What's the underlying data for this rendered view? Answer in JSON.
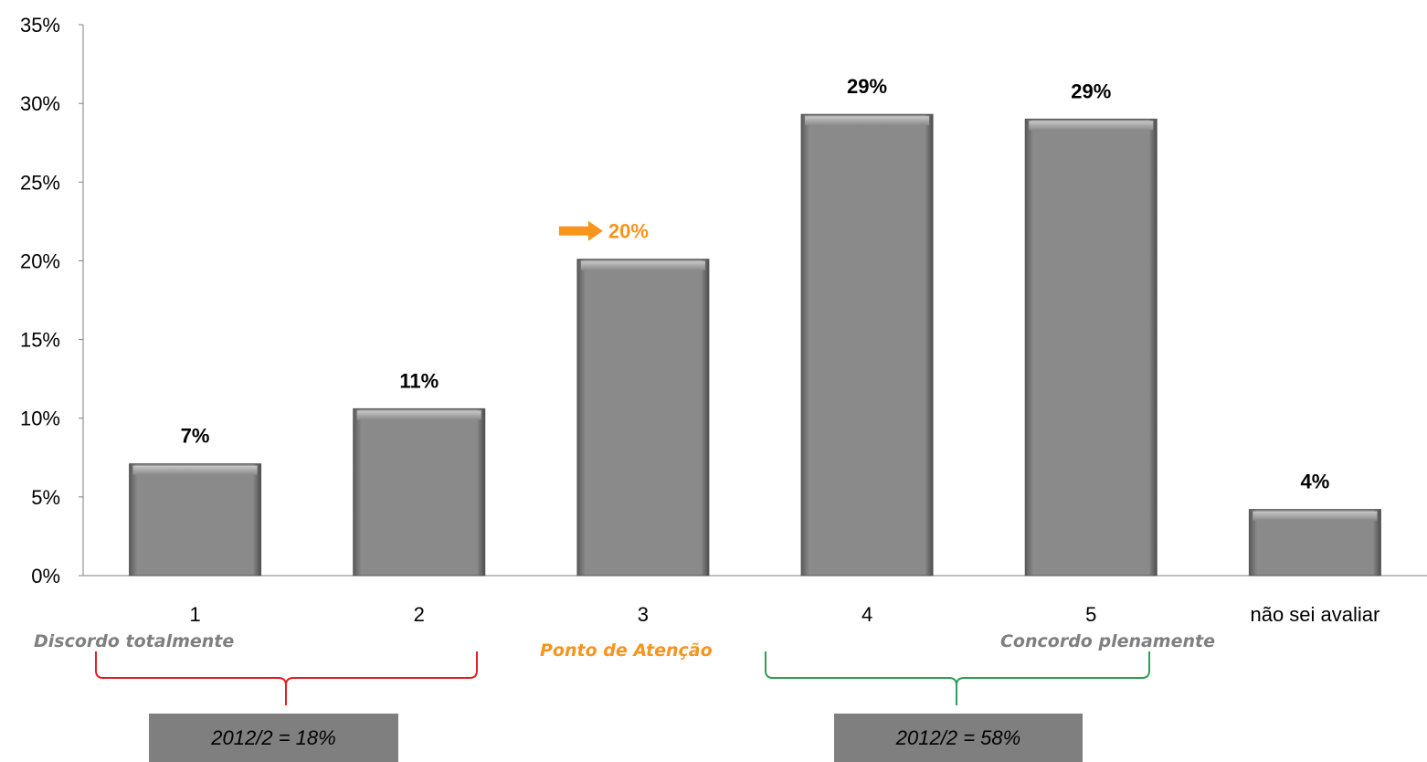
{
  "chart_data": {
    "type": "bar",
    "categories": [
      "1",
      "2",
      "3",
      "4",
      "5",
      "não sei avaliar"
    ],
    "values": [
      7.1,
      10.6,
      20.1,
      29.3,
      29.0,
      4.2
    ],
    "data_labels": [
      "7%",
      "11%",
      "20%",
      "29%",
      "29%",
      "4%"
    ],
    "highlight_index": 2,
    "ylim": [
      0,
      35
    ],
    "yticks": [
      "0%",
      "5%",
      "10%",
      "15%",
      "20%",
      "25%",
      "30%",
      "35%"
    ],
    "grid": false,
    "legend": "none",
    "colors": {
      "bar": "#8a8a8a",
      "highlight": "#f7941d",
      "negative_brace": "#e31e24",
      "positive_brace": "#2e9e5a",
      "box": "#7f7f7f",
      "scale_text": "#7f7f7f"
    }
  },
  "annotations": {
    "scale_low": "Discordo totalmente",
    "scale_mid": "Ponto de Atenção",
    "scale_high": "Concordo plenamente",
    "arrow_icon": "right-arrow-icon"
  },
  "summaries": {
    "negative": "2012/2 = 18%",
    "positive": "2012/2 = 58%"
  }
}
